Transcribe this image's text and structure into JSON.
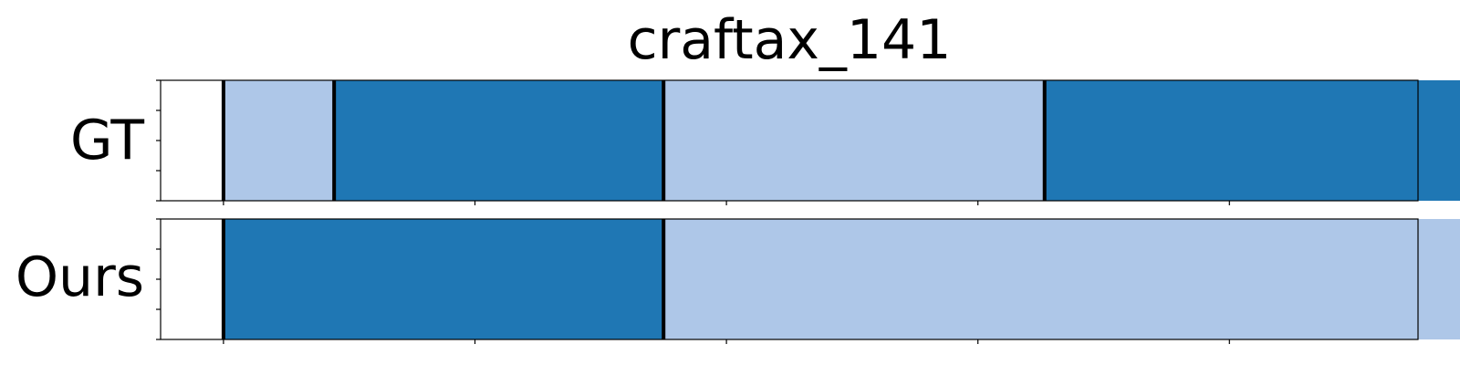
{
  "chart_data": {
    "type": "segmentation",
    "title": "craftax_141",
    "x_range": [
      0,
      100
    ],
    "rows": [
      {
        "label": "GT",
        "segments": [
          {
            "start": 5,
            "end": 13.8,
            "class": "light"
          },
          {
            "start": 13.8,
            "end": 40,
            "class": "dark"
          },
          {
            "start": 40,
            "end": 70.3,
            "class": "light"
          },
          {
            "start": 70.3,
            "end": 105,
            "class": "dark"
          }
        ],
        "boundaries": [
          5,
          13.8,
          40,
          70.3,
          105
        ]
      },
      {
        "label": "Ours",
        "segments": [
          {
            "start": 5,
            "end": 40,
            "class": "dark"
          },
          {
            "start": 40,
            "end": 105,
            "class": "light"
          }
        ],
        "boundaries": [
          5,
          40,
          105
        ]
      }
    ],
    "colors": {
      "dark": "#1f77b4",
      "light": "#aec7e8",
      "boundary": "#000000"
    },
    "xticks": [
      5,
      25,
      45,
      65,
      85,
      105
    ],
    "show_tick_labels": false,
    "grid": false
  }
}
